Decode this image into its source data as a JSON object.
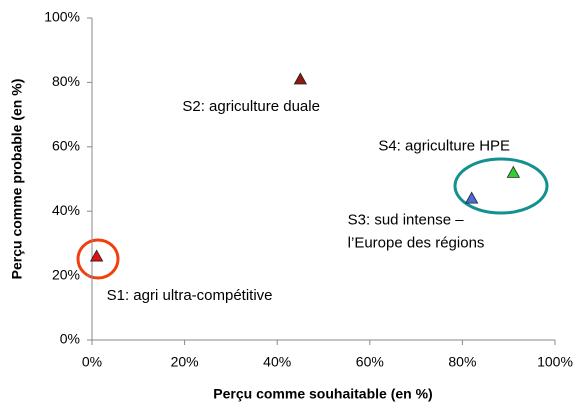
{
  "chart_data": {
    "type": "scatter",
    "x_label": "Perçu comme souhaitable (en %)",
    "y_label": "Perçu comme probable (en %)",
    "xlim": [
      0,
      100
    ],
    "ylim": [
      0,
      100
    ],
    "xticks": [
      {
        "value": 0,
        "label": "0%"
      },
      {
        "value": 20,
        "label": "20%"
      },
      {
        "value": 40,
        "label": "40%"
      },
      {
        "value": 60,
        "label": "60%"
      },
      {
        "value": 80,
        "label": "80%"
      },
      {
        "value": 100,
        "label": "100%"
      }
    ],
    "yticks": [
      {
        "value": 0,
        "label": "0%"
      },
      {
        "value": 20,
        "label": "20%"
      },
      {
        "value": 40,
        "label": "40%"
      },
      {
        "value": 60,
        "label": "60%"
      },
      {
        "value": 80,
        "label": "80%"
      },
      {
        "value": 100,
        "label": "100%"
      }
    ],
    "grid": false,
    "points": [
      {
        "label": [
          "S1: agri ultra-compétitive"
        ],
        "x": 1,
        "y": 26,
        "color": "#e01010",
        "label_color": "#e01010"
      },
      {
        "label": [
          "S2: agriculture duale"
        ],
        "x": 45,
        "y": 81,
        "color": "#8b1a10",
        "label_color": "#7a3a1a"
      },
      {
        "label": [
          "S3: sud intense –",
          "l’Europe des régions"
        ],
        "x": 82,
        "y": 44,
        "color": "#4a6ad8",
        "label_color": "#1a1ad0"
      },
      {
        "label": [
          "S4: agriculture HPE"
        ],
        "x": 91,
        "y": 52,
        "color": "#33cc33",
        "label_color": "#33cc33"
      }
    ]
  }
}
